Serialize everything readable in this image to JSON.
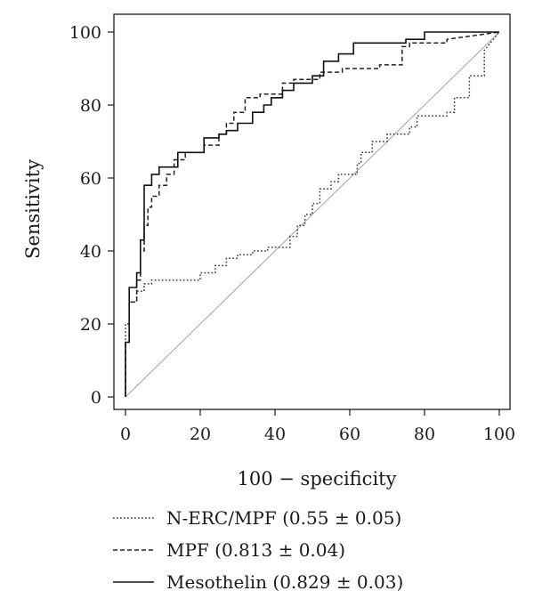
{
  "chart_data": {
    "type": "line",
    "xlabel": "100 − specificity",
    "ylabel": "Sensitivity",
    "xlim": [
      0,
      100
    ],
    "ylim": [
      0,
      100
    ],
    "xticks": [
      "0",
      "20",
      "40",
      "60",
      "80",
      "100"
    ],
    "yticks": [
      "0",
      "20",
      "40",
      "60",
      "80",
      "100"
    ],
    "grid": false,
    "legend_position": "bottom",
    "reference_line": {
      "x": [
        0,
        100
      ],
      "y": [
        0,
        100
      ],
      "color": "#9a9a9a"
    },
    "series": [
      {
        "name": "N-ERC/MPF (0.55 ± 0.05)",
        "style": "dotted",
        "color": "#333333",
        "x": [
          0,
          0,
          1,
          1,
          3,
          3,
          5,
          5,
          7,
          7,
          20,
          20,
          24,
          24,
          27,
          27,
          30,
          30,
          34,
          34,
          38,
          38,
          44,
          44,
          46,
          46,
          48,
          48,
          50,
          50,
          52,
          52,
          55,
          55,
          57,
          57,
          62,
          62,
          63,
          63,
          66,
          66,
          70,
          70,
          76,
          76,
          78,
          78,
          86,
          86,
          88,
          88,
          92,
          92,
          96,
          96,
          100
        ],
        "y": [
          0,
          20,
          20,
          26,
          26,
          29,
          29,
          31,
          31,
          32,
          32,
          34,
          34,
          36,
          36,
          38,
          38,
          39,
          39,
          40,
          40,
          41,
          41,
          44,
          44,
          47,
          47,
          50,
          50,
          53,
          53,
          57,
          57,
          59,
          59,
          61,
          61,
          64,
          64,
          67,
          67,
          70,
          70,
          72,
          72,
          74,
          74,
          77,
          77,
          78,
          78,
          82,
          82,
          88,
          88,
          95,
          100
        ]
      },
      {
        "name": "MPF (0.813 ± 0.04)",
        "style": "dashed",
        "color": "#222222",
        "x": [
          0,
          0,
          1,
          1,
          3,
          3,
          4,
          4,
          5,
          5,
          6,
          6,
          7,
          7,
          9,
          9,
          11,
          11,
          13,
          13,
          16,
          16,
          21,
          21,
          25,
          25,
          27,
          27,
          29,
          29,
          32,
          32,
          36,
          36,
          42,
          42,
          45,
          45,
          52,
          52,
          58,
          58,
          68,
          68,
          74,
          74,
          76,
          76,
          86,
          86,
          100
        ],
        "y": [
          0,
          15,
          15,
          26,
          26,
          32,
          32,
          40,
          40,
          47,
          47,
          52,
          52,
          55,
          55,
          58,
          58,
          61,
          61,
          65,
          65,
          67,
          67,
          69,
          69,
          72,
          72,
          75,
          75,
          78,
          78,
          82,
          82,
          83,
          83,
          86,
          86,
          87,
          87,
          89,
          89,
          90,
          90,
          91,
          91,
          96,
          96,
          97,
          97,
          98,
          100
        ]
      },
      {
        "name": "Mesothelin (0.829 ± 0.03)",
        "style": "solid",
        "color": "#111111",
        "x": [
          0,
          0,
          1,
          1,
          3,
          3,
          4,
          4,
          5,
          5,
          7,
          7,
          9,
          9,
          14,
          14,
          21,
          21,
          25,
          25,
          27,
          27,
          30,
          30,
          34,
          34,
          37,
          37,
          39,
          39,
          42,
          42,
          45,
          45,
          50,
          50,
          53,
          53,
          57,
          57,
          61,
          61,
          75,
          75,
          80,
          80,
          100
        ],
        "y": [
          0,
          15,
          15,
          30,
          30,
          34,
          34,
          43,
          43,
          58,
          58,
          61,
          61,
          63,
          63,
          67,
          67,
          71,
          71,
          72,
          72,
          73,
          73,
          75,
          75,
          78,
          78,
          80,
          80,
          82,
          82,
          84,
          84,
          86,
          86,
          88,
          88,
          92,
          92,
          94,
          94,
          97,
          97,
          98,
          98,
          100,
          100
        ]
      }
    ]
  }
}
